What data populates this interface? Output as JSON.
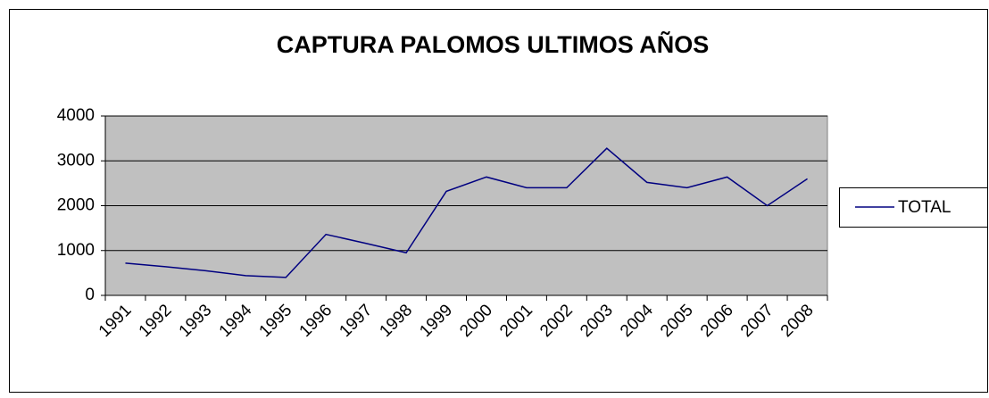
{
  "chart_data": {
    "type": "line",
    "title": "CAPTURA PALOMOS ULTIMOS AÑOS",
    "categories": [
      "1991",
      "1992",
      "1993",
      "1994",
      "1995",
      "1996",
      "1997",
      "1998",
      "1999",
      "2000",
      "2001",
      "2002",
      "2003",
      "2004",
      "2005",
      "2006",
      "2007",
      "2008"
    ],
    "series": [
      {
        "name": "TOTAL",
        "color": "#000080",
        "values": [
          720,
          640,
          550,
          440,
          400,
          1360,
          1160,
          950,
          2320,
          2640,
          2400,
          2400,
          3280,
          2520,
          2400,
          2640,
          2000,
          2600
        ]
      }
    ],
    "ylim": [
      0,
      4000
    ],
    "yticks": [
      0,
      1000,
      2000,
      3000,
      4000
    ],
    "grid": true,
    "legend": "right"
  }
}
